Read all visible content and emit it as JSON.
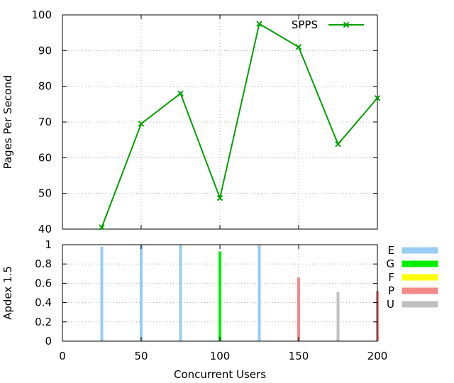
{
  "chart_data": [
    {
      "type": "line",
      "ylabel": "Pages Per Second",
      "ylim": [
        40,
        100
      ],
      "yticks": [
        "40",
        "50",
        "60",
        "70",
        "80",
        "90",
        "100"
      ],
      "grid": true,
      "legend_placement": "top-right",
      "series": [
        {
          "name": "SPPS",
          "color": "#00a000",
          "marker": "x",
          "x": [
            25,
            50,
            75,
            100,
            125,
            150,
            175,
            200
          ],
          "values": [
            40.5,
            69.5,
            78,
            48.7,
            97.5,
            91,
            63.8,
            76.7
          ]
        }
      ]
    },
    {
      "type": "bar",
      "ylabel": "Apdex 1.5",
      "xlabel": "Concurrent Users",
      "xlim": [
        0,
        200
      ],
      "ylim": [
        0,
        1
      ],
      "xticks": [
        "0",
        "50",
        "100",
        "150",
        "200"
      ],
      "yticks": [
        "0",
        "0.2",
        "0.4",
        "0.6",
        "0.8",
        "1"
      ],
      "grid": true,
      "legend_placement": "right",
      "x": [
        25,
        50,
        75,
        100,
        125,
        150,
        175,
        200
      ],
      "values": [
        0.98,
        1.0,
        1.0,
        0.93,
        1.0,
        0.66,
        0.51,
        0.52
      ],
      "rating": [
        "E",
        "E",
        "E",
        "G",
        "E",
        "P",
        "U",
        "P"
      ],
      "legend": [
        {
          "key": "E",
          "color": "#99ccf2"
        },
        {
          "key": "G",
          "color": "#00ee00"
        },
        {
          "key": "F",
          "color": "#ffff00"
        },
        {
          "key": "P",
          "color": "#f28a8a"
        },
        {
          "key": "U",
          "color": "#c0c0c0"
        }
      ]
    }
  ]
}
